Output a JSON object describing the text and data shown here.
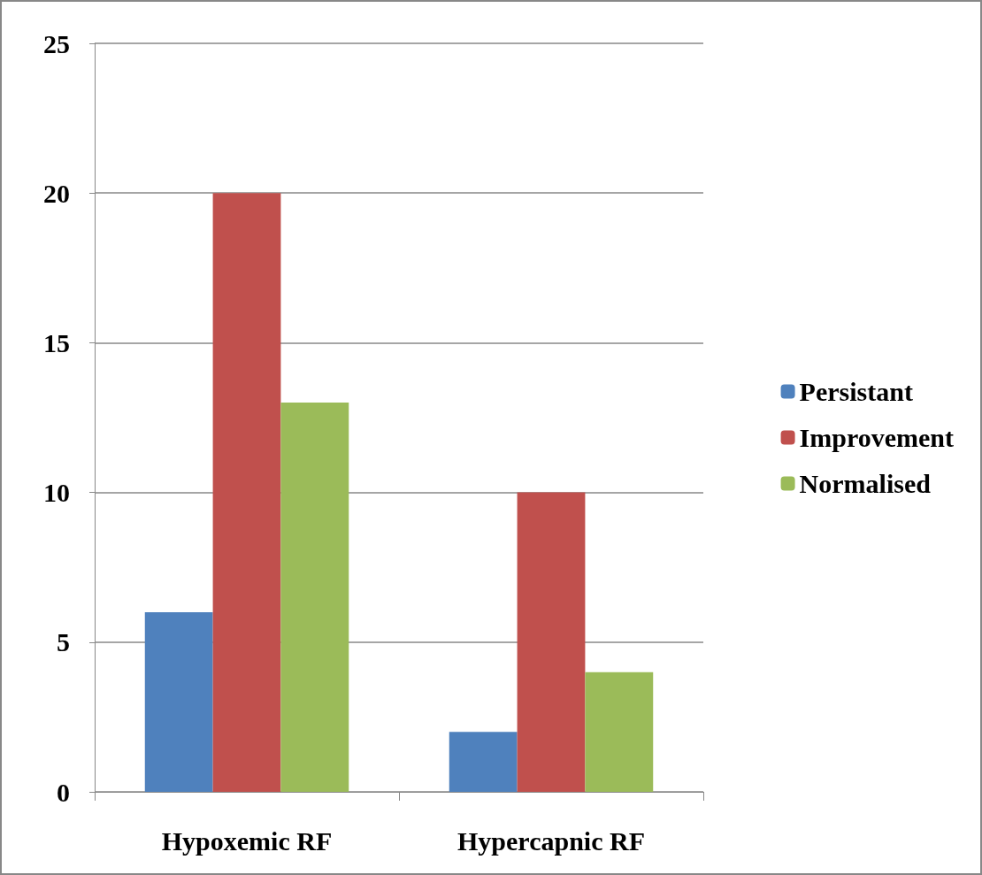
{
  "chart_data": {
    "type": "bar",
    "categories": [
      "Hypoxemic RF",
      "Hypercapnic RF"
    ],
    "series": [
      {
        "name": "Persistant",
        "color": "#4f81bd",
        "values": [
          6,
          2
        ]
      },
      {
        "name": "Improvement",
        "color": "#c0504d",
        "values": [
          20,
          10
        ]
      },
      {
        "name": "Normalised",
        "color": "#9bbb59",
        "values": [
          13,
          4
        ]
      }
    ],
    "ylim": [
      0,
      25
    ],
    "yticks": [
      0,
      5,
      10,
      15,
      20,
      25
    ],
    "grid": "y",
    "legend": "right"
  }
}
